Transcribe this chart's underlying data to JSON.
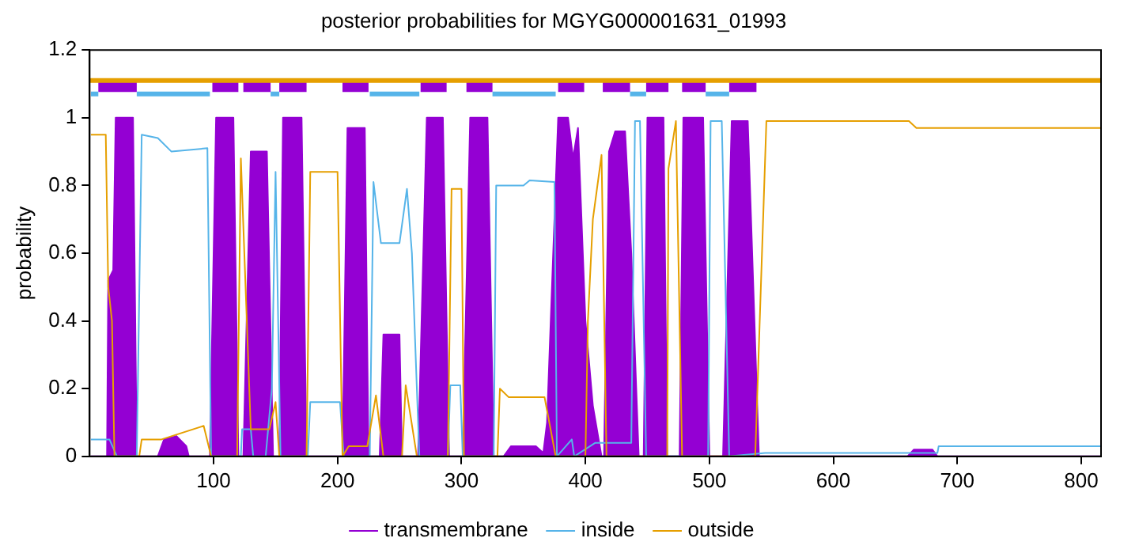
{
  "chart_data": {
    "type": "line",
    "title": "posterior probabilities for MGYG000001631_01993",
    "ylabel": "probability",
    "xlim": [
      0,
      816
    ],
    "xticks": [
      100,
      200,
      300,
      400,
      500,
      600,
      700,
      800
    ],
    "ylim": [
      0,
      1.2
    ],
    "yticks": [
      0,
      0.2,
      0.4,
      0.6,
      0.8,
      1,
      1.2
    ],
    "legend": "bottom",
    "series": [
      {
        "name": "transmembrane",
        "type": "area",
        "color": "#9400d3",
        "x": [
          1,
          14,
          15,
          19,
          21,
          35,
          38,
          55,
          60,
          70,
          78,
          80,
          97,
          102,
          116,
          120,
          124,
          130,
          143,
          148,
          153,
          156,
          171,
          175,
          204,
          208,
          222,
          225,
          234,
          237,
          250,
          252,
          265,
          272,
          285,
          290,
          301,
          307,
          321,
          326,
          334,
          340,
          360,
          366,
          369,
          378,
          386,
          390,
          394,
          400,
          406,
          413,
          415,
          419,
          424,
          432,
          437,
          443,
          447,
          450,
          463,
          466,
          476,
          479,
          495,
          500,
          511,
          518,
          531,
          540,
          660,
          665,
          680,
          684,
          816
        ],
        "values": [
          0,
          0,
          0.52,
          0.55,
          1,
          1,
          0,
          0,
          0.05,
          0.06,
          0.03,
          0,
          0,
          1,
          1,
          0,
          0,
          0.9,
          0.9,
          0,
          0,
          1,
          1,
          0,
          0,
          0.97,
          0.97,
          0,
          0,
          0.36,
          0.36,
          0,
          0,
          1,
          1,
          0,
          0,
          1,
          1,
          0,
          0,
          0.03,
          0.03,
          0.01,
          0.1,
          1,
          1,
          0.88,
          0.97,
          0.4,
          0.15,
          0,
          0,
          0.9,
          0.96,
          0.96,
          0.6,
          0,
          0,
          1,
          1,
          0,
          0,
          1,
          1,
          0,
          0,
          0.99,
          0.99,
          0,
          0,
          0.02,
          0.02,
          0,
          0
        ]
      },
      {
        "name": "inside",
        "color": "#56b4e9",
        "x": [
          1,
          16,
          22,
          38,
          42,
          55,
          66,
          95,
          98,
          122,
          123,
          130,
          132,
          142,
          147,
          150,
          154,
          176,
          178,
          202,
          205,
          226,
          229,
          235,
          250,
          256,
          260,
          266,
          289,
          291,
          299,
          301,
          326,
          328,
          350,
          355,
          375,
          377,
          389,
          391,
          408,
          437,
          440,
          444,
          449,
          499,
          501,
          510,
          516,
          545,
          684,
          685,
          816
        ],
        "values": [
          0.05,
          0.05,
          0,
          0,
          0.95,
          0.94,
          0.9,
          0.91,
          0,
          0,
          0.08,
          0.08,
          0,
          0,
          0.2,
          0.84,
          0,
          0,
          0.16,
          0.16,
          0,
          0,
          0.81,
          0.63,
          0.63,
          0.79,
          0.6,
          0,
          0,
          0.21,
          0.21,
          0,
          0,
          0.8,
          0.8,
          0.815,
          0.81,
          0,
          0.05,
          0,
          0.04,
          0.04,
          0.99,
          0.99,
          0,
          0,
          0.99,
          0.99,
          0,
          0.01,
          0.01,
          0.03,
          0.03
        ]
      },
      {
        "name": "outside",
        "color": "#e69f00",
        "x": [
          1,
          13,
          15,
          18,
          20,
          40,
          42,
          58,
          92,
          98,
          119,
          122,
          130,
          145,
          150,
          153,
          175,
          178,
          200,
          204,
          209,
          224,
          231,
          237,
          252,
          255,
          264,
          289,
          292,
          300,
          302,
          329,
          331,
          338,
          367,
          376,
          400,
          402,
          406,
          413,
          417,
          466,
          467,
          473,
          478,
          537,
          546,
          661,
          667,
          816
        ],
        "values": [
          0.95,
          0.95,
          0.5,
          0.4,
          0,
          0,
          0.05,
          0.05,
          0.09,
          0,
          0,
          0.88,
          0.08,
          0.08,
          0.16,
          0,
          0,
          0.84,
          0.84,
          0,
          0.03,
          0.03,
          0.18,
          0,
          0,
          0.21,
          0,
          0,
          0.79,
          0.79,
          0,
          0,
          0.2,
          0.175,
          0.175,
          0,
          0,
          0.4,
          0.7,
          0.89,
          0,
          0,
          0.85,
          0.99,
          0,
          0,
          0.99,
          0.99,
          0.97,
          0.97
        ]
      },
      {
        "color": "#9400d3",
        "x": [
          7,
          38,
          68,
          99,
          120,
          122,
          124,
          146,
          150,
          153,
          175,
          190,
          204,
          225,
          246,
          267,
          288,
          296,
          304,
          325,
          351,
          378,
          399,
          406,
          414,
          436,
          442,
          449,
          467,
          472,
          478,
          497,
          506,
          516,
          538
        ],
        "values": [
          1.095,
          1.095,
          null,
          1.095,
          1.095,
          null,
          1.095,
          1.095,
          null,
          1.095,
          1.095,
          null,
          1.095,
          1.095,
          null,
          1.095,
          1.095,
          null,
          1.095,
          1.095,
          null,
          1.095,
          1.095,
          null,
          1.095,
          1.095,
          null,
          1.095,
          1.095,
          null,
          1.095,
          1.095,
          null,
          1.095,
          1.095
        ]
      },
      {
        "color": "#56b4e9",
        "x": [
          1,
          7,
          22,
          38,
          97,
          120,
          146,
          153,
          190,
          226,
          266,
          296,
          325,
          376,
          406,
          436,
          449,
          472,
          497,
          516
        ],
        "values": [
          1.07,
          1.07,
          null,
          1.07,
          1.07,
          null,
          1.07,
          1.07,
          null,
          1.07,
          1.07,
          null,
          1.07,
          1.07,
          null,
          1.07,
          1.07,
          null,
          1.07,
          1.07
        ]
      },
      {
        "color": "#e69f00",
        "x": [
          0,
          816
        ],
        "values": [
          1.11,
          1.11
        ]
      }
    ]
  }
}
